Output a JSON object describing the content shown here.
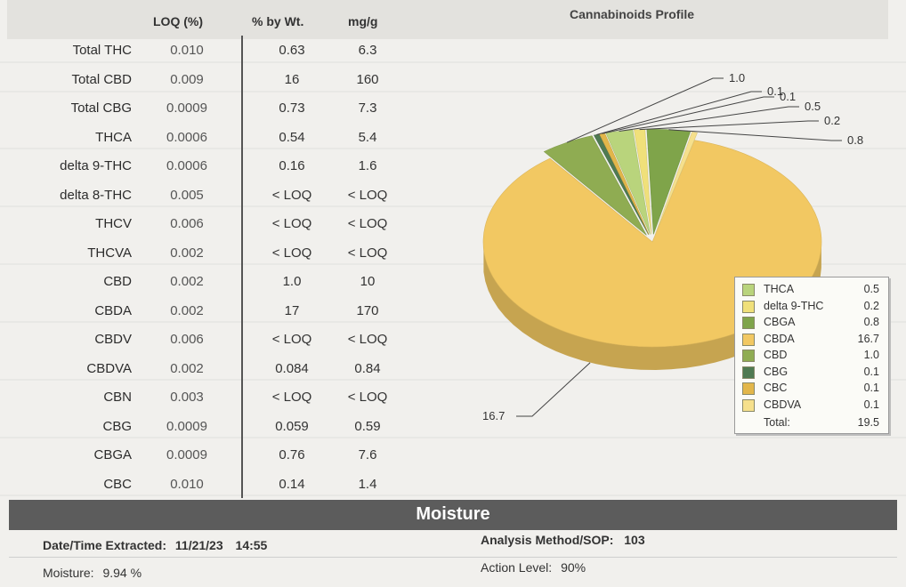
{
  "table": {
    "headers": {
      "loq": "LOQ (%)",
      "pct": "% by Wt.",
      "mg": "mg/g"
    },
    "rows": [
      {
        "name": "Total THC",
        "loq": "0.010",
        "pct": "0.63",
        "mg": "6.3"
      },
      {
        "name": "Total CBD",
        "loq": "0.009",
        "pct": "16",
        "mg": "160"
      },
      {
        "name": "Total CBG",
        "loq": "0.0009",
        "pct": "0.73",
        "mg": "7.3"
      },
      {
        "name": "THCA",
        "loq": "0.0006",
        "pct": "0.54",
        "mg": "5.4"
      },
      {
        "name": "delta 9-THC",
        "loq": "0.0006",
        "pct": "0.16",
        "mg": "1.6"
      },
      {
        "name": "delta 8-THC",
        "loq": "0.005",
        "pct": "< LOQ",
        "mg": "< LOQ"
      },
      {
        "name": "THCV",
        "loq": "0.006",
        "pct": "< LOQ",
        "mg": "< LOQ"
      },
      {
        "name": "THCVA",
        "loq": "0.002",
        "pct": "< LOQ",
        "mg": "< LOQ"
      },
      {
        "name": "CBD",
        "loq": "0.002",
        "pct": "1.0",
        "mg": "10"
      },
      {
        "name": "CBDA",
        "loq": "0.002",
        "pct": "17",
        "mg": "170"
      },
      {
        "name": "CBDV",
        "loq": "0.006",
        "pct": "< LOQ",
        "mg": "< LOQ"
      },
      {
        "name": "CBDVA",
        "loq": "0.002",
        "pct": "0.084",
        "mg": "0.84"
      },
      {
        "name": "CBN",
        "loq": "0.003",
        "pct": "< LOQ",
        "mg": "< LOQ"
      },
      {
        "name": "CBG",
        "loq": "0.0009",
        "pct": "0.059",
        "mg": "0.59"
      },
      {
        "name": "CBGA",
        "loq": "0.0009",
        "pct": "0.76",
        "mg": "7.6"
      },
      {
        "name": "CBC",
        "loq": "0.010",
        "pct": "0.14",
        "mg": "1.4"
      }
    ]
  },
  "chart_data": {
    "type": "pie",
    "title": "Cannabinoids Profile",
    "slices": [
      {
        "name": "CBDA",
        "value": 16.7,
        "color": "#f2c862",
        "label": "16.7"
      },
      {
        "name": "CBD",
        "value": 1.0,
        "color": "#8fac52",
        "label": "1.0"
      },
      {
        "name": "CBG",
        "value": 0.1,
        "color": "#4f7a52",
        "label": "0.1"
      },
      {
        "name": "CBC",
        "value": 0.1,
        "color": "#e2b64a",
        "label": "0.1"
      },
      {
        "name": "THCA",
        "value": 0.5,
        "color": "#b9d47c",
        "label": "0.5"
      },
      {
        "name": "delta 9-THC",
        "value": 0.2,
        "color": "#f0e07a",
        "label": "0.2"
      },
      {
        "name": "CBGA",
        "value": 0.8,
        "color": "#7fa44a",
        "label": "0.8"
      },
      {
        "name": "CBDVA",
        "value": 0.1,
        "color": "#f6e08c",
        "label": ""
      }
    ],
    "legend": [
      {
        "name": "THCA",
        "value": "0.5",
        "color": "#b9d47c"
      },
      {
        "name": "delta 9-THC",
        "value": "0.2",
        "color": "#f0e07a"
      },
      {
        "name": "CBGA",
        "value": "0.8",
        "color": "#7fa44a"
      },
      {
        "name": "CBDA",
        "value": "16.7",
        "color": "#f2c862"
      },
      {
        "name": "CBD",
        "value": "1.0",
        "color": "#8fac52"
      },
      {
        "name": "CBG",
        "value": "0.1",
        "color": "#4f7a52"
      },
      {
        "name": "CBC",
        "value": "0.1",
        "color": "#e2b64a"
      },
      {
        "name": "CBDVA",
        "value": "0.1",
        "color": "#f6e08c"
      }
    ],
    "total_label": "Total:",
    "total_value": "19.5"
  },
  "moisture": {
    "banner": "Moisture",
    "date_label": "Date/Time Extracted:",
    "date_value": "11/21/23",
    "time_value": "14:55",
    "moisture_label": "Moisture:",
    "moisture_value": "9.94 %",
    "method_label": "Analysis Method/SOP:",
    "method_value": "103",
    "action_label": "Action Level:",
    "action_value": "90%"
  }
}
